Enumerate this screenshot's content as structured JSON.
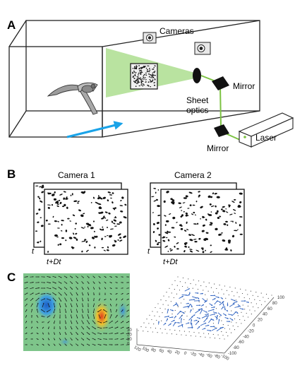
{
  "panels": {
    "a": {
      "letter": "A",
      "labels": {
        "cameras": "Cameras",
        "mirror_top": "Mirror",
        "sheet_optics_line1": "Sheet",
        "sheet_optics_line2": "optics",
        "laser": "Laser",
        "mirror_bottom": "Mirror"
      },
      "colors": {
        "laser_sheet": "#b9e3a0",
        "laser_beam": "#7cc242",
        "flow_arrow": "#1aa3e8",
        "box_edge": "#222222"
      }
    },
    "b": {
      "letter": "B",
      "camera1_title": "Camera 1",
      "camera2_title": "Camera 2",
      "frame1_label": "t",
      "frame2_label": "t+Dt"
    },
    "c": {
      "letter": "C",
      "z_ticks": [
        "30",
        "20",
        "10",
        "0"
      ],
      "x_ticks": [
        "120",
        "100",
        "80",
        "60",
        "40",
        "20",
        "0",
        "-20",
        "-40",
        "-60",
        "-80",
        "-100"
      ],
      "y_ticks": [
        "100",
        "80",
        "60",
        "40",
        "20",
        "0",
        "-20",
        "-40",
        "-60",
        "-80",
        "-100"
      ],
      "colors": {
        "field_bg": "#7ec58a",
        "vortex_neg": "#2a7fd4",
        "vortex_pos": "#e8a02a",
        "vector": "#2a5fbf"
      }
    }
  }
}
